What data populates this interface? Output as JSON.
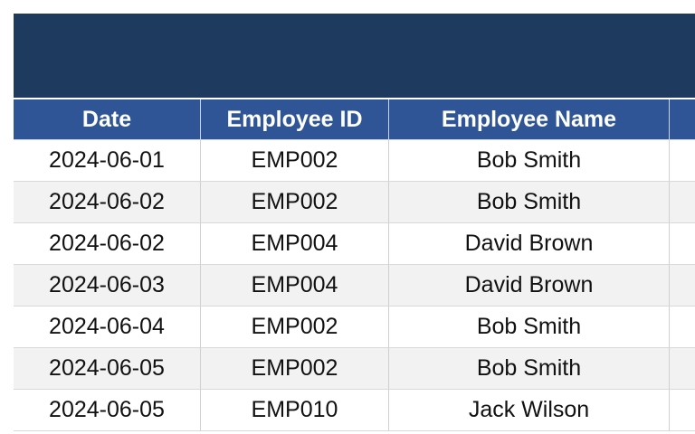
{
  "table": {
    "headers": [
      "Date",
      "Employee ID",
      "Employee Name"
    ],
    "rows": [
      [
        "2024-06-01",
        "EMP002",
        "Bob Smith"
      ],
      [
        "2024-06-02",
        "EMP002",
        "Bob Smith"
      ],
      [
        "2024-06-02",
        "EMP004",
        "David Brown"
      ],
      [
        "2024-06-03",
        "EMP004",
        "David Brown"
      ],
      [
        "2024-06-04",
        "EMP002",
        "Bob Smith"
      ],
      [
        "2024-06-05",
        "EMP002",
        "Bob Smith"
      ],
      [
        "2024-06-05",
        "EMP010",
        "Jack Wilson"
      ]
    ]
  }
}
